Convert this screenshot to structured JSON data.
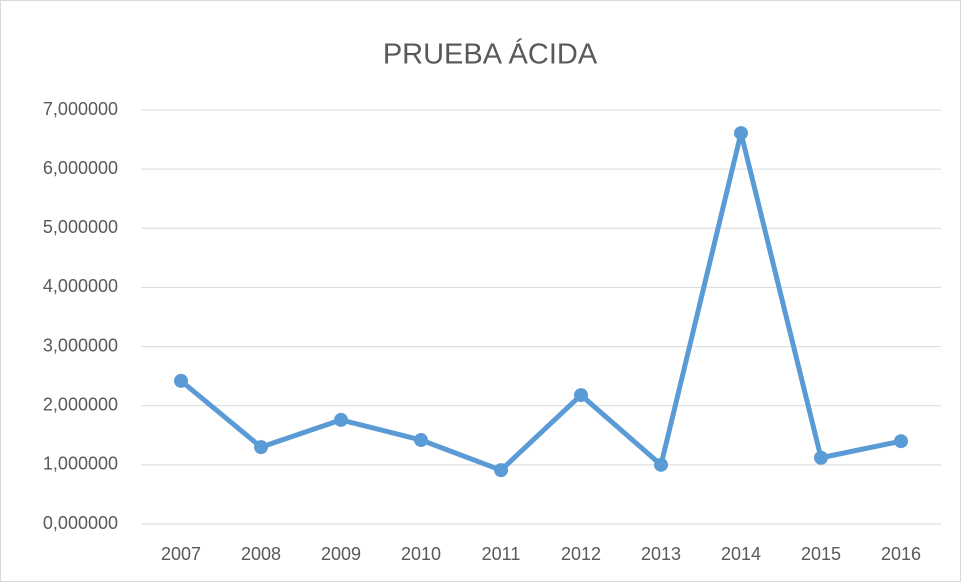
{
  "chart_data": {
    "type": "line",
    "title": "PRUEBA ÁCIDA",
    "categories": [
      "2007",
      "2008",
      "2009",
      "2010",
      "2011",
      "2012",
      "2013",
      "2014",
      "2015",
      "2016"
    ],
    "series": [
      {
        "name": "PRUEBA ÁCIDA",
        "color": "#5b9bd5",
        "values": [
          2.42,
          1.3,
          1.76,
          1.42,
          0.91,
          2.18,
          1.0,
          6.61,
          1.12,
          1.4
        ]
      }
    ],
    "ylim": [
      0,
      7
    ],
    "yticks": [
      {
        "value": 0,
        "label": "0,000000"
      },
      {
        "value": 1,
        "label": "1,000000"
      },
      {
        "value": 2,
        "label": "2,000000"
      },
      {
        "value": 3,
        "label": "3,000000"
      },
      {
        "value": 4,
        "label": "4,000000"
      },
      {
        "value": 5,
        "label": "5,000000"
      },
      {
        "value": 6,
        "label": "6,000000"
      },
      {
        "value": 7,
        "label": "7,000000"
      }
    ],
    "grid": true
  }
}
